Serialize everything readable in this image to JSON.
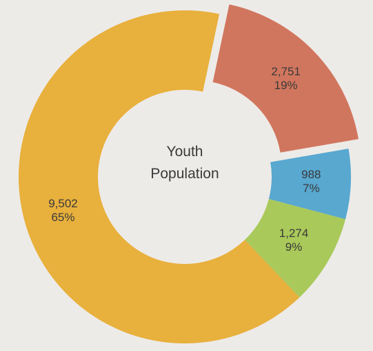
{
  "chart_data": {
    "type": "pie",
    "variant": "donut",
    "center_label": [
      "Youth",
      "Population"
    ],
    "slices": [
      {
        "value": 2751,
        "value_label": "2,751",
        "percent_label": "19%",
        "color": "#d1765e",
        "exploded": true
      },
      {
        "value": 988,
        "value_label": "988",
        "percent_label": "7%",
        "color": "#58a8d0",
        "exploded": false
      },
      {
        "value": 1274,
        "value_label": "1,274",
        "percent_label": "9%",
        "color": "#a9c95a",
        "exploded": false
      },
      {
        "value": 9502,
        "value_label": "9,502",
        "percent_label": "65%",
        "color": "#e8b03c",
        "exploded": false
      }
    ],
    "legend": "none",
    "background": "#edebe8"
  }
}
